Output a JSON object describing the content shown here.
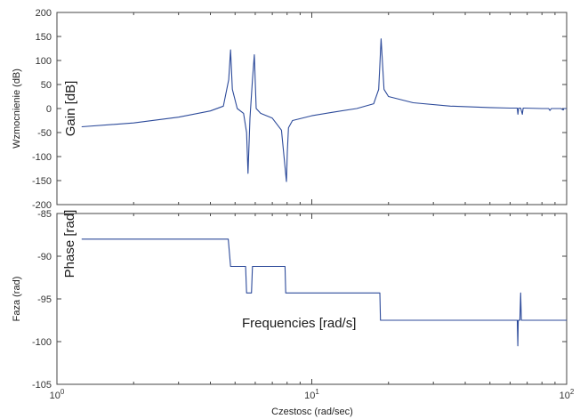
{
  "chart_data": [
    {
      "type": "line",
      "panel": "top",
      "ylabel": "Wzmocnienie (dB)",
      "annotation": "Gain [dB]",
      "xscale": "log",
      "xlim": [
        1,
        100
      ],
      "ylim": [
        -200,
        200
      ],
      "yticks": [
        "200",
        "150",
        "100",
        "50",
        "0",
        "-50",
        "-100",
        "-150",
        "-200"
      ],
      "ytick_values": [
        200,
        150,
        100,
        50,
        0,
        -50,
        -100,
        -150,
        -200
      ],
      "grid": false,
      "color": "#2c4a9a",
      "x": [
        1.25,
        2.0,
        3.0,
        4.0,
        4.5,
        4.72,
        4.8,
        4.88,
        5.1,
        5.4,
        5.55,
        5.62,
        5.72,
        5.85,
        5.95,
        6.05,
        6.3,
        7.0,
        7.6,
        7.95,
        8.02,
        8.1,
        8.4,
        10.0,
        12.0,
        15.0,
        17.5,
        18.3,
        18.7,
        19.2,
        20.0,
        25.0,
        35.0,
        50.0,
        60.0,
        64.0,
        64.4,
        64.8,
        66.0,
        67.0,
        67.5,
        68.0,
        80.0,
        85.0,
        86.0,
        87.0,
        90.0,
        95.0,
        97.0,
        97.5,
        98.0,
        100.0
      ],
      "y": [
        -38,
        -30,
        -18,
        -5,
        5,
        60,
        122,
        40,
        0,
        -10,
        -50,
        -135,
        -20,
        60,
        112,
        0,
        -10,
        -20,
        -45,
        -152,
        -90,
        -40,
        -25,
        -15,
        -8,
        0,
        10,
        40,
        145,
        40,
        25,
        12,
        5,
        2,
        1,
        1,
        -12,
        1,
        1,
        -12,
        1,
        1,
        0,
        0,
        -4,
        0,
        0,
        0,
        -3,
        0,
        0,
        0
      ]
    },
    {
      "type": "line",
      "panel": "bottom",
      "ylabel": "Faza (rad)",
      "xlabel": "Czestosc  (rad/sec)",
      "annotation_phase": "Phase [rad]",
      "annotation_freq": "Frequencies [rad/s]",
      "xscale": "log",
      "xlim": [
        1,
        100
      ],
      "ylim": [
        -105,
        -85
      ],
      "yticks": [
        "-85",
        "-90",
        "-95",
        "-100",
        "-105"
      ],
      "ytick_values": [
        -85,
        -90,
        -95,
        -100,
        -105
      ],
      "xticks": [
        {
          "value": 1,
          "base": "10",
          "exp": "0"
        },
        {
          "value": 10,
          "base": "10",
          "exp": "1"
        },
        {
          "value": 100,
          "base": "10",
          "exp": "2"
        }
      ],
      "grid": false,
      "color": "#2c4a9a",
      "x": [
        1.25,
        4.7,
        4.8,
        5.5,
        5.55,
        5.8,
        5.85,
        7.85,
        7.9,
        18.5,
        18.6,
        64.0,
        64.3,
        64.6,
        65.5,
        66.0,
        66.4,
        66.8,
        100.0
      ],
      "y": [
        -88,
        -88,
        -91.2,
        -91.2,
        -94.3,
        -94.3,
        -91.2,
        -91.2,
        -94.3,
        -94.3,
        -97.5,
        -97.5,
        -100.5,
        -97.5,
        -97.5,
        -94.3,
        -97.5,
        -97.5,
        -97.5
      ]
    }
  ]
}
